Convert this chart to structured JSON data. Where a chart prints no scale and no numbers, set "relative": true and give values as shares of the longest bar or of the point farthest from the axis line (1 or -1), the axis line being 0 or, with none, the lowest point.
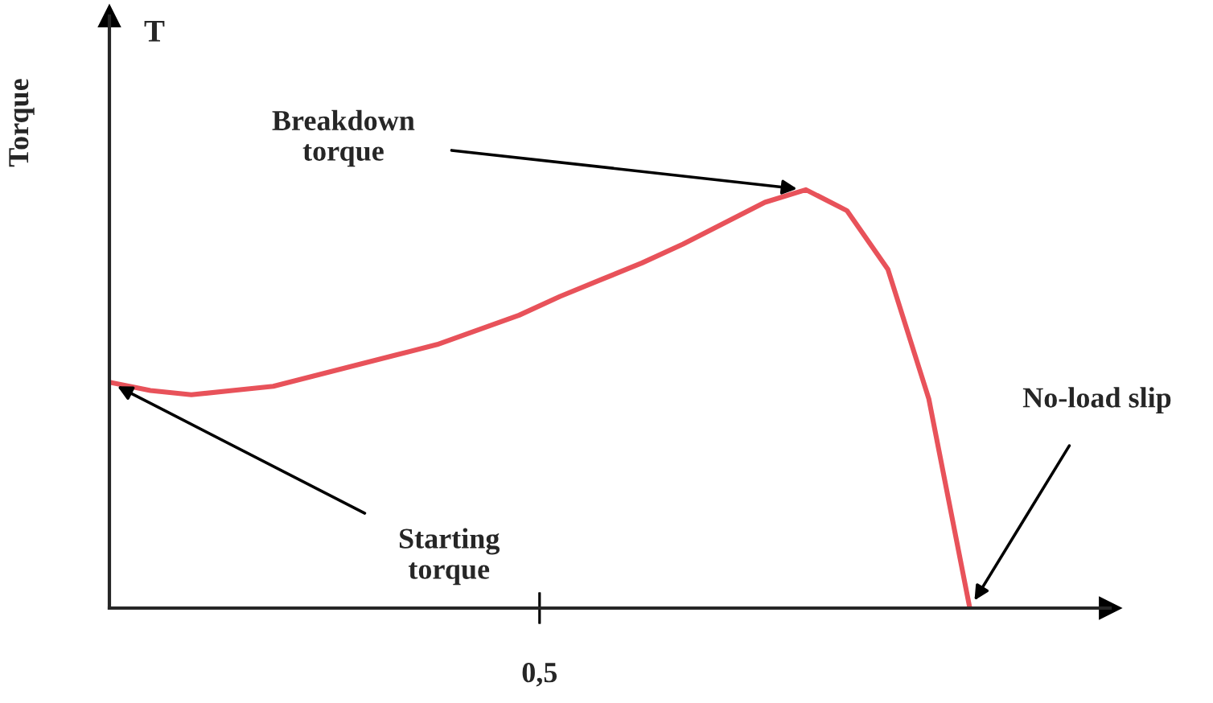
{
  "chart_data": {
    "type": "line",
    "relative": true,
    "ylabel": "Torque",
    "categories": [
      null,
      null,
      null,
      null,
      null,
      null,
      null,
      null,
      null,
      null,
      null,
      null,
      null,
      null,
      null,
      null,
      null,
      null,
      null,
      null,
      null,
      null
    ],
    "series": [
      {
        "color": "#e8525a",
        "values": [
          0.54,
          0.52,
          0.51,
          0.52,
          0.53,
          0.555,
          0.58,
          0.605,
          0.63,
          0.665,
          0.7,
          0.745,
          0.785,
          0.825,
          0.87,
          0.92,
          0.97,
          1.0,
          0.95,
          0.81,
          0.5,
          0
        ]
      }
    ],
    "annotations": [
      "T",
      "0,5",
      "Breakdown\ntorque",
      "Starting\ntorque",
      "No-load slip"
    ],
    "line_style": "solid",
    "marker": "none"
  }
}
